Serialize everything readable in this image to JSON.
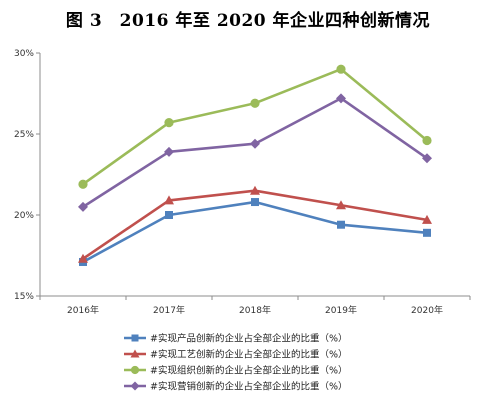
{
  "title": "图 3　2016 年至 2020 年企业四种创新情况",
  "chart_data": {
    "type": "line",
    "x": [
      "2016年",
      "2017年",
      "2018年",
      "2019年",
      "2020年"
    ],
    "ylim": [
      0.15,
      0.3
    ],
    "yticks": [
      0.15,
      0.2,
      0.25,
      0.3
    ],
    "ytick_labels": [
      "15%",
      "20%",
      "25%",
      "30%"
    ],
    "grid": false,
    "legend_position": "bottom",
    "series": [
      {
        "name": "#实现产品创新的企业占全部企业的比重（%）",
        "color": "#4f81bd",
        "marker": "square",
        "values": [
          0.171,
          0.2,
          0.208,
          0.194,
          0.189
        ]
      },
      {
        "name": "#实现工艺创新的企业占全部企业的比重（%）",
        "color": "#c0504d",
        "marker": "triangle",
        "values": [
          0.173,
          0.209,
          0.215,
          0.206,
          0.197
        ]
      },
      {
        "name": "#实现组织创新的企业占全部企业的比重（%）",
        "color": "#9bbb59",
        "marker": "circle",
        "values": [
          0.219,
          0.257,
          0.269,
          0.29,
          0.246
        ]
      },
      {
        "name": "#实现营销创新的企业占全部企业的比重（%）",
        "color": "#8064a2",
        "marker": "diamond",
        "values": [
          0.205,
          0.239,
          0.244,
          0.272,
          0.235
        ]
      }
    ]
  }
}
